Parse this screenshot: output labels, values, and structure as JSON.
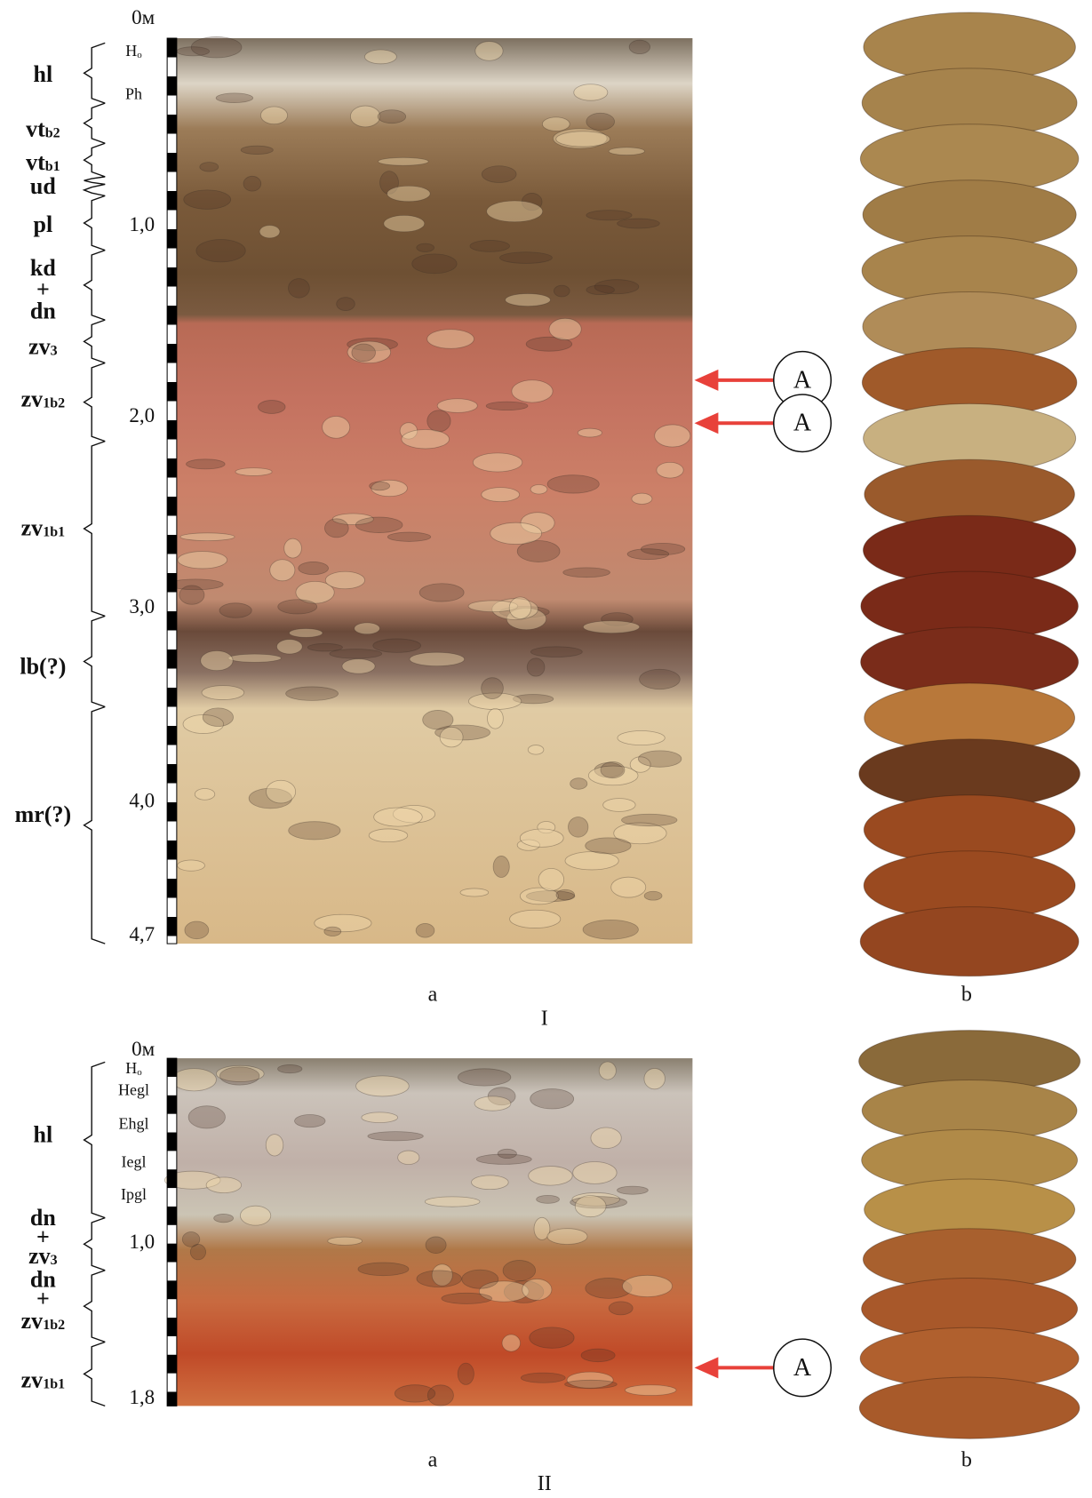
{
  "panels": [
    {
      "number": "I",
      "column_a": "a",
      "column_b": "b",
      "depth_ticks": [
        "0м",
        "1,0",
        "2,0",
        "3,0",
        "4,0",
        "4,7"
      ],
      "horizons": [
        {
          "text": "H",
          "sub": "o"
        },
        {
          "text": "Ph"
        }
      ],
      "units": [
        [
          {
            "text": "hl"
          }
        ],
        [
          {
            "text": "vt",
            "sub": "b2"
          }
        ],
        [
          {
            "text": "vt",
            "sub": "b1"
          }
        ],
        [
          {
            "text": "ud"
          }
        ],
        [
          {
            "text": "pl"
          }
        ],
        [
          {
            "text": "kd"
          },
          {
            "text": "+"
          },
          {
            "text": "dn"
          }
        ],
        [
          {
            "text": "zv",
            "sub": "3"
          }
        ],
        [
          {
            "text": "zv",
            "sub": "1b2"
          }
        ],
        [
          {
            "text": "zv",
            "sub": "1b1"
          }
        ],
        [
          {
            "text": "lb(?)"
          }
        ],
        [
          {
            "text": "mr(?)"
          }
        ]
      ],
      "markers": [
        "A",
        "A"
      ]
    },
    {
      "number": "II",
      "column_a": "a",
      "column_b": "b",
      "depth_ticks": [
        "0м",
        "1,0",
        "1,8"
      ],
      "horizons": [
        {
          "text": "H",
          "sub": "o"
        },
        {
          "text": "Hegl"
        },
        {
          "text": "Ehgl"
        },
        {
          "text": "Iegl"
        },
        {
          "text": "Ipgl"
        }
      ],
      "units": [
        [
          {
            "text": "hl"
          }
        ],
        [
          {
            "text": "dn"
          },
          {
            "text": "+"
          },
          {
            "text": "zv",
            "sub": "3"
          }
        ],
        [
          {
            "text": "dn"
          },
          {
            "text": "+"
          },
          {
            "text": "zv",
            "sub": "1b2"
          }
        ],
        [
          {
            "text": "zv",
            "sub": "1b1"
          }
        ]
      ],
      "markers": [
        "A"
      ]
    }
  ]
}
